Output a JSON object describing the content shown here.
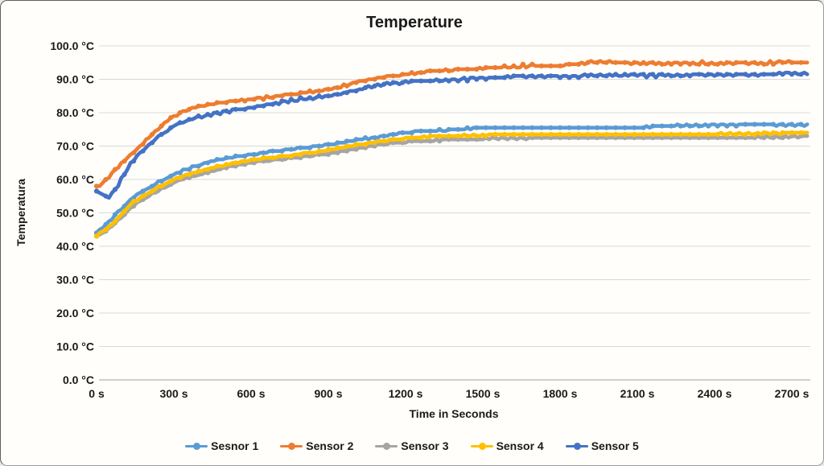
{
  "window": {
    "background_color": "#FFFEFA",
    "border_color": "#9B9B9B",
    "gridline_color": "#D9D9D9",
    "axis_line_color": "#BFBFBF",
    "text_color": "#1A1A1A"
  },
  "chart_data": {
    "type": "line",
    "title": "Temperature",
    "xlabel": "Time in Seconds",
    "ylabel": "Temperatura",
    "x_tick_labels": [
      "0 s",
      "300 s",
      "600 s",
      "900 s",
      "1200 s",
      "1500 s",
      "1800 s",
      "2100 s",
      "2400 s",
      "2700 s"
    ],
    "x_tick_values": [
      0,
      300,
      600,
      900,
      1200,
      1500,
      1800,
      2100,
      2400,
      2700
    ],
    "y_tick_labels": [
      "0.0 °C",
      "10.0 °C",
      "20.0 °C",
      "30.0 °C",
      "40.0 °C",
      "50.0 °C",
      "60.0 °C",
      "70.0 °C",
      "80.0 °C",
      "90.0 °C",
      "100.0 °C"
    ],
    "y_tick_values": [
      0,
      10,
      20,
      30,
      40,
      50,
      60,
      70,
      80,
      90,
      100
    ],
    "xlim": [
      0,
      2770
    ],
    "ylim": [
      0,
      100
    ],
    "grid": "horizontal",
    "legend_position": "bottom",
    "marker": "circle",
    "x_samples": [
      0,
      50,
      100,
      150,
      300,
      450,
      600,
      750,
      900,
      1050,
      1200,
      1350,
      1500,
      1650,
      1800,
      1950,
      2100,
      2250,
      2400,
      2550,
      2700
    ],
    "series": [
      {
        "name": "Sesnor 1",
        "color": "#5B9BD5",
        "values": [
          44.0,
          47.5,
          51.5,
          55.0,
          61.5,
          65.5,
          67.5,
          69.0,
          70.5,
          72.3,
          74.0,
          74.8,
          75.4,
          75.4,
          75.5,
          75.5,
          75.6,
          76.2,
          76.3,
          76.3,
          76.3
        ]
      },
      {
        "name": "Sensor 2",
        "color": "#ED7D31",
        "values": [
          57.5,
          61.0,
          65.0,
          68.5,
          79.0,
          82.5,
          84.0,
          85.5,
          87.0,
          89.8,
          91.5,
          92.6,
          93.3,
          93.8,
          94.2,
          95.0,
          94.8,
          94.7,
          94.8,
          94.8,
          94.9
        ]
      },
      {
        "name": "Sensor 3",
        "color": "#A5A5A5",
        "values": [
          42.8,
          45.5,
          49.0,
          52.5,
          59.0,
          62.5,
          65.0,
          66.3,
          67.8,
          69.8,
          71.3,
          71.8,
          72.2,
          72.3,
          72.4,
          72.5,
          72.5,
          72.6,
          72.6,
          72.7,
          72.8
        ]
      },
      {
        "name": "Sensor 4",
        "color": "#FFC000",
        "values": [
          43.2,
          46.0,
          49.8,
          53.5,
          60.0,
          63.5,
          65.8,
          67.2,
          68.8,
          70.8,
          72.3,
          73.0,
          73.3,
          73.4,
          73.5,
          73.5,
          73.6,
          73.6,
          73.7,
          73.7,
          73.8
        ]
      },
      {
        "name": "Sensor 5",
        "color": "#4472C4",
        "values": [
          56.5,
          55.0,
          60.5,
          66.5,
          75.9,
          79.5,
          81.5,
          83.5,
          85.0,
          87.5,
          89.2,
          89.8,
          90.4,
          90.8,
          91.0,
          91.2,
          91.3,
          91.2,
          91.4,
          91.5,
          91.8
        ]
      }
    ]
  }
}
